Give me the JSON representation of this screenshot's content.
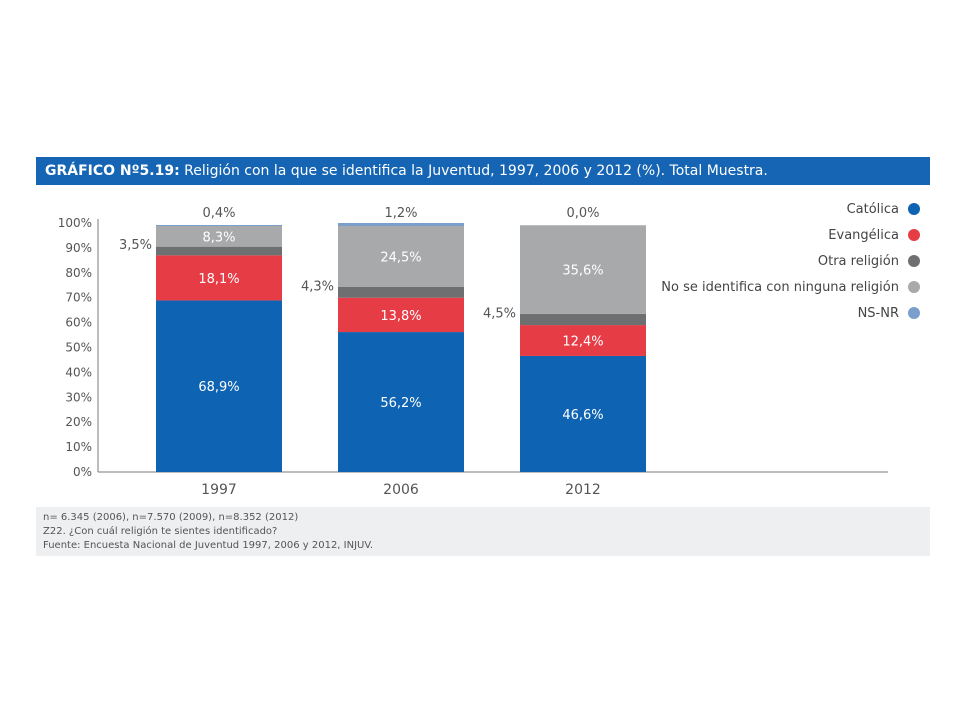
{
  "title": {
    "prefix": "GRÁFICO Nº5.19:",
    "text": " Religión con la que se identifica la Juventud, 1997, 2006 y 2012 (%). Total Muestra."
  },
  "notes": [
    "n= 6.345 (2006), n=7.570 (2009), n=8.352 (2012)",
    "Z22. ¿Con cuál religión te sientes identificado?",
    "Fuente: Encuesta Nacional de Juventud 1997, 2006 y 2012, INJUV."
  ],
  "chart_data": {
    "type": "bar",
    "stacked": true,
    "categories": [
      "1997",
      "2006",
      "2012"
    ],
    "ylim": [
      0,
      100
    ],
    "yticks": [
      "0%",
      "10%",
      "20%",
      "30%",
      "40%",
      "50%",
      "60%",
      "70%",
      "80%",
      "90%",
      "100%"
    ],
    "legend_position": "top-right",
    "series": [
      {
        "name": "Católica",
        "color": "#0e63b3",
        "values": [
          68.9,
          56.2,
          46.6
        ],
        "labels": [
          "68,9%",
          "56,2%",
          "46,6%"
        ]
      },
      {
        "name": "Evangélica",
        "color": "#e63c46",
        "values": [
          18.1,
          13.8,
          12.4
        ],
        "labels": [
          "18,1%",
          "13,8%",
          "12,4%"
        ]
      },
      {
        "name": "Otra religión",
        "color": "#6e6f71",
        "values": [
          3.5,
          4.3,
          4.5
        ],
        "labels": [
          "3,5%",
          "4,3%",
          "4,5%"
        ]
      },
      {
        "name": "No se identifica con ninguna religión",
        "color": "#a8a9ab",
        "values": [
          8.3,
          24.5,
          35.6
        ],
        "labels": [
          "8,3%",
          "24,5%",
          "35,6%"
        ]
      },
      {
        "name": "NS-NR",
        "color": "#7b9fcc",
        "values": [
          0.4,
          1.2,
          0.0
        ],
        "labels": [
          "0,4%",
          "1,2%",
          "0,0%"
        ]
      }
    ]
  }
}
